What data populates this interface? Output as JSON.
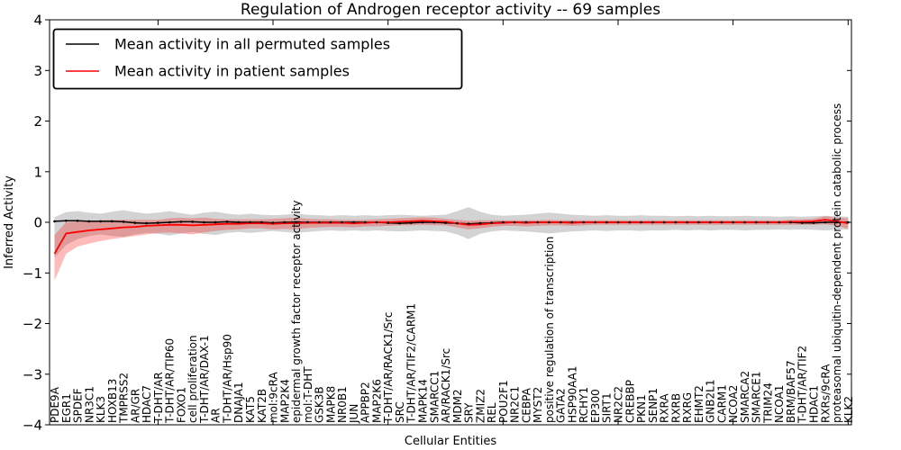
{
  "figure": {
    "title": "Regulation of Androgen receptor activity -- 69 samples",
    "xlabel": "Cellular Entities",
    "ylabel": "Inferred Activity",
    "background": "#ffffff"
  },
  "legend": {
    "position": "upper left",
    "entries": [
      {
        "label": "Mean activity in all permuted samples",
        "color": "#000000"
      },
      {
        "label": "Mean activity in patient samples",
        "color": "#ff0000"
      }
    ]
  },
  "chart_data": {
    "type": "line",
    "title": "Regulation of Androgen receptor activity -- 69 samples",
    "xlabel": "Cellular Entities",
    "ylabel": "Inferred Activity",
    "ylim": [
      -4,
      4
    ],
    "yticks": [
      -4,
      -3,
      -2,
      -1,
      0,
      1,
      2,
      3,
      4
    ],
    "grid": false,
    "legend_position": "upper left",
    "x_major_tick_every": 10,
    "categories": [
      "PDE9A",
      "EGR1",
      "SPDEF",
      "NR3C1",
      "KLK3",
      "HOXB13",
      "TMPRSS2",
      "AR/GR",
      "HDAC7",
      "T-DHT/AR",
      "T-DHT/AR/TIP60",
      "FOXO1",
      "cell proliferation",
      "T-DHT/AR/DAX-1",
      "AR",
      "T-DHT/AR/Hsp90",
      "DNAJA1",
      "KAT5",
      "KAT2B",
      "mol:9cRA",
      "MAP2K4",
      "epidermal growth factor receptor activity",
      "mol:T-DHT",
      "GSK3B",
      "MAPK8",
      "NR0B1",
      "JUN",
      "APPBP2",
      "MAP2K6",
      "T-DHT/AR/RACK1/Src",
      "SRC",
      "T-DHT/AR/TIF2/CARM1",
      "MAPK14",
      "SMARCC1",
      "AR/RACK1/Src",
      "MDM2",
      "SRY",
      "ZMIZ2",
      "REL",
      "POU2F1",
      "NR2C1",
      "CEBPA",
      "MYST2",
      "positive regulation of transcription",
      "GATA2",
      "HSP90AA1",
      "RCHY1",
      "EP300",
      "SIRT1",
      "NR2C2",
      "CREBBP",
      "PKN1",
      "SENP1",
      "RXRA",
      "RXRB",
      "RXRG",
      "EHMT2",
      "GNB2L1",
      "CARM1",
      "NCOA2",
      "SMARCA2",
      "SMARCE1",
      "TRIM24",
      "NCOA1",
      "BRM/BAF57",
      "T-DHT/AR/TIF2",
      "HDAC1",
      "RXRs/9cRA",
      "proteasomal ubiquitin-dependent protein catabolic process",
      "KLK2"
    ],
    "series": [
      {
        "name": "Mean activity in all permuted samples",
        "color": "#000000",
        "marker": "dot",
        "values": [
          0.02,
          0.03,
          0.03,
          0.02,
          0.02,
          0.02,
          0.01,
          -0.01,
          -0.02,
          -0.01,
          0.0,
          0.01,
          0.01,
          0.0,
          0.0,
          0.01,
          0.0,
          0.0,
          0.0,
          -0.01,
          0.0,
          0.0,
          0.0,
          0.0,
          0.0,
          0.0,
          0.0,
          0.0,
          0.0,
          -0.01,
          -0.02,
          -0.01,
          0.0,
          0.0,
          -0.01,
          -0.02,
          -0.03,
          -0.02,
          -0.01,
          0.0,
          0.0,
          0.0,
          0.0,
          0.0,
          0.0,
          0.0,
          0.0,
          0.0,
          0.0,
          0.0,
          0.0,
          0.0,
          0.0,
          0.0,
          0.0,
          0.0,
          0.0,
          0.0,
          0.0,
          0.0,
          0.0,
          0.0,
          0.0,
          0.0,
          0.0,
          -0.01,
          -0.01,
          0.0,
          0.0,
          0.0
        ]
      },
      {
        "name": "Mean activity in patient samples",
        "color": "#ff0000",
        "marker": "none",
        "values": [
          -0.62,
          -0.22,
          -0.19,
          -0.16,
          -0.14,
          -0.12,
          -0.1,
          -0.09,
          -0.07,
          -0.06,
          -0.05,
          -0.05,
          -0.06,
          -0.05,
          -0.04,
          -0.03,
          -0.03,
          -0.02,
          -0.02,
          -0.03,
          -0.02,
          -0.02,
          -0.01,
          -0.01,
          -0.01,
          -0.01,
          -0.02,
          -0.01,
          0.0,
          0.0,
          0.01,
          0.02,
          0.03,
          0.02,
          0.01,
          -0.02,
          -0.05,
          -0.04,
          -0.02,
          -0.01,
          0.0,
          -0.01,
          0.0,
          0.0,
          0.0,
          -0.01,
          0.0,
          0.0,
          0.0,
          0.0,
          0.0,
          0.0,
          0.0,
          0.0,
          0.0,
          0.0,
          0.0,
          0.0,
          0.0,
          0.0,
          0.0,
          0.0,
          0.0,
          0.0,
          0.01,
          0.01,
          0.02,
          0.05,
          0.02,
          -0.02
        ]
      }
    ],
    "bands": [
      {
        "name": "permuted samples std band",
        "color": "#808080",
        "opacity": 0.35,
        "upper": [
          0.1,
          0.2,
          0.22,
          0.19,
          0.17,
          0.21,
          0.24,
          0.2,
          0.17,
          0.19,
          0.22,
          0.18,
          0.15,
          0.19,
          0.21,
          0.17,
          0.15,
          0.17,
          0.15,
          0.14,
          0.15,
          0.17,
          0.15,
          0.14,
          0.13,
          0.14,
          0.13,
          0.14,
          0.13,
          0.14,
          0.15,
          0.14,
          0.13,
          0.14,
          0.15,
          0.22,
          0.3,
          0.21,
          0.15,
          0.13,
          0.14,
          0.15,
          0.17,
          0.19,
          0.17,
          0.15,
          0.14,
          0.13,
          0.14,
          0.13,
          0.13,
          0.14,
          0.13,
          0.13,
          0.12,
          0.13,
          0.12,
          0.13,
          0.12,
          0.12,
          0.13,
          0.12,
          0.12,
          0.11,
          0.12,
          0.11,
          0.12,
          0.13,
          0.12,
          0.11
        ],
        "lower": [
          -0.7,
          -0.45,
          -0.33,
          -0.27,
          -0.24,
          -0.27,
          -0.29,
          -0.24,
          -0.21,
          -0.23,
          -0.26,
          -0.22,
          -0.19,
          -0.23,
          -0.25,
          -0.21,
          -0.19,
          -0.21,
          -0.19,
          -0.17,
          -0.19,
          -0.21,
          -0.19,
          -0.17,
          -0.16,
          -0.17,
          -0.16,
          -0.17,
          -0.16,
          -0.17,
          -0.18,
          -0.17,
          -0.16,
          -0.17,
          -0.18,
          -0.24,
          -0.33,
          -0.23,
          -0.18,
          -0.16,
          -0.17,
          -0.18,
          -0.2,
          -0.22,
          -0.2,
          -0.18,
          -0.17,
          -0.16,
          -0.17,
          -0.16,
          -0.16,
          -0.17,
          -0.16,
          -0.16,
          -0.15,
          -0.16,
          -0.15,
          -0.16,
          -0.15,
          -0.15,
          -0.16,
          -0.15,
          -0.15,
          -0.14,
          -0.15,
          -0.14,
          -0.15,
          -0.16,
          -0.15,
          -0.14
        ]
      },
      {
        "name": "patient samples std band",
        "color": "#ff0000",
        "opacity": 0.27,
        "upper": [
          -0.25,
          0.0,
          0.02,
          0.03,
          0.04,
          0.05,
          0.05,
          0.05,
          0.05,
          0.05,
          0.08,
          0.09,
          0.08,
          0.09,
          0.07,
          0.06,
          0.06,
          0.06,
          0.06,
          0.07,
          0.08,
          0.09,
          0.07,
          0.06,
          0.06,
          0.05,
          0.05,
          0.05,
          0.06,
          0.07,
          0.08,
          0.09,
          0.1,
          0.09,
          0.07,
          0.05,
          0.03,
          0.04,
          0.04,
          0.04,
          0.04,
          0.04,
          0.04,
          0.05,
          0.04,
          0.04,
          0.04,
          0.04,
          0.04,
          0.04,
          0.04,
          0.04,
          0.04,
          0.04,
          0.04,
          0.04,
          0.04,
          0.04,
          0.04,
          0.04,
          0.04,
          0.04,
          0.04,
          0.04,
          0.05,
          0.06,
          0.07,
          0.12,
          0.09,
          0.08
        ],
        "lower": [
          -1.15,
          -0.62,
          -0.48,
          -0.42,
          -0.37,
          -0.33,
          -0.3,
          -0.27,
          -0.24,
          -0.21,
          -0.2,
          -0.22,
          -0.24,
          -0.2,
          -0.17,
          -0.15,
          -0.14,
          -0.12,
          -0.12,
          -0.14,
          -0.13,
          -0.14,
          -0.11,
          -0.1,
          -0.09,
          -0.09,
          -0.1,
          -0.08,
          -0.08,
          -0.07,
          -0.06,
          -0.06,
          -0.05,
          -0.06,
          -0.06,
          -0.1,
          -0.14,
          -0.12,
          -0.09,
          -0.07,
          -0.07,
          -0.08,
          -0.07,
          -0.06,
          -0.06,
          -0.07,
          -0.06,
          -0.05,
          -0.05,
          -0.05,
          -0.05,
          -0.05,
          -0.05,
          -0.05,
          -0.05,
          -0.05,
          -0.05,
          -0.05,
          -0.05,
          -0.05,
          -0.05,
          -0.05,
          -0.05,
          -0.05,
          -0.05,
          -0.05,
          -0.05,
          -0.04,
          -0.07,
          -0.13
        ]
      }
    ]
  }
}
